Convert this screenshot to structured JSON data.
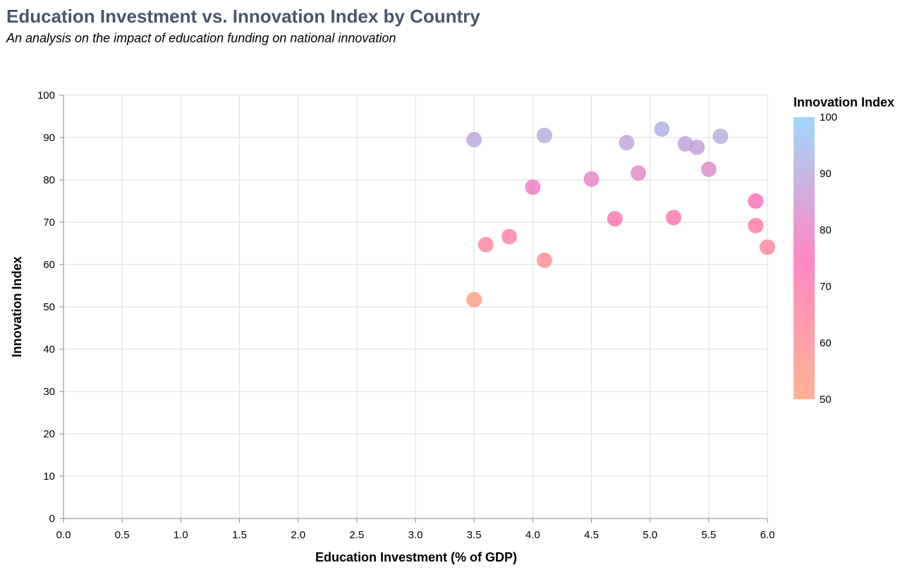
{
  "chart_data": {
    "type": "scatter",
    "title": "Education Investment vs. Innovation Index by Country",
    "subtitle": "An analysis on the impact of education funding on national innovation",
    "xlabel": "Education Investment (% of GDP)",
    "ylabel": "Innovation Index",
    "xlim": [
      0,
      6
    ],
    "ylim": [
      0,
      100
    ],
    "x_ticks": [
      "0.0",
      "0.5",
      "1.0",
      "1.5",
      "2.0",
      "2.5",
      "3.0",
      "3.5",
      "4.0",
      "4.5",
      "5.0",
      "5.5",
      "6.0"
    ],
    "y_ticks": [
      "0",
      "10",
      "20",
      "30",
      "40",
      "50",
      "60",
      "70",
      "80",
      "90",
      "100"
    ],
    "grid": true,
    "legend": {
      "title": "Innovation Index",
      "placement": "right",
      "labels": [
        "100",
        "90",
        "80",
        "70",
        "60",
        "50"
      ],
      "domain": [
        50,
        100
      ],
      "gradient_colors": [
        "#FFA07A",
        "#FF69B4",
        "#87CEFA"
      ]
    },
    "points": [
      {
        "x": 3.5,
        "y": 89.5
      },
      {
        "x": 4.1,
        "y": 90.5
      },
      {
        "x": 4.8,
        "y": 88.8
      },
      {
        "x": 5.1,
        "y": 92.0
      },
      {
        "x": 5.3,
        "y": 88.5
      },
      {
        "x": 5.4,
        "y": 87.7
      },
      {
        "x": 5.6,
        "y": 90.3
      },
      {
        "x": 5.5,
        "y": 82.5
      },
      {
        "x": 4.9,
        "y": 81.6
      },
      {
        "x": 4.5,
        "y": 80.2
      },
      {
        "x": 4.0,
        "y": 78.3
      },
      {
        "x": 5.9,
        "y": 75.0
      },
      {
        "x": 5.2,
        "y": 71.1
      },
      {
        "x": 4.7,
        "y": 70.8
      },
      {
        "x": 5.9,
        "y": 69.2
      },
      {
        "x": 3.8,
        "y": 66.6
      },
      {
        "x": 3.6,
        "y": 64.7
      },
      {
        "x": 6.0,
        "y": 64.1
      },
      {
        "x": 4.1,
        "y": 61.0
      },
      {
        "x": 3.5,
        "y": 51.7
      }
    ]
  }
}
